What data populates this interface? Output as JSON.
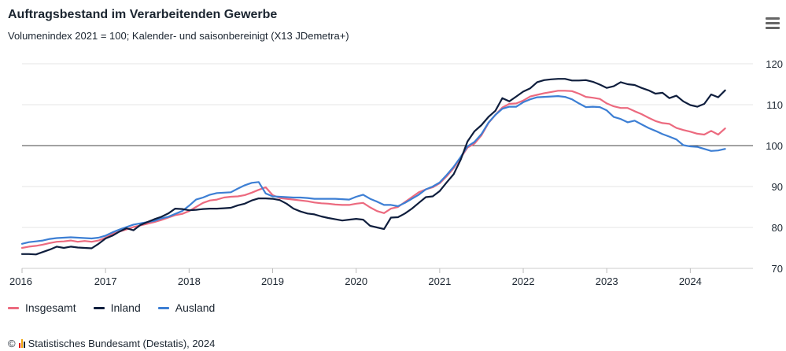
{
  "title": "Auftragsbestand im Verarbeitenden Gewerbe",
  "subtitle": "Volumenindex 2021 = 100; Kalender- und saisonbereinigt (X13 JDemetra+)",
  "menu_icon": "hamburger-menu-icon",
  "source": "Statistisches Bundesamt (Destatis), 2024",
  "source_prefix": "©",
  "colors": {
    "Insgesamt": "#ec6a7f",
    "Inland": "#0f1e3d",
    "Ausland": "#3d7fd4",
    "baseline": "#444444",
    "grid": "#e6e6e6"
  },
  "chart_data": {
    "type": "line",
    "title": "Auftragsbestand im Verarbeitenden Gewerbe",
    "subtitle": "Volumenindex 2021 = 100; Kalender- und saisonbereinigt (X13 JDemetra+)",
    "x_start": "2016-01",
    "x_ticks": [
      "2016",
      "2017",
      "2018",
      "2019",
      "2020",
      "2021",
      "2022",
      "2023",
      "2024"
    ],
    "y_ticks": [
      70,
      80,
      90,
      100,
      110,
      120
    ],
    "ylim": [
      70,
      120
    ],
    "reference_line": 100,
    "legend_position": "bottom-left",
    "series": [
      {
        "name": "Insgesamt",
        "values": [
          75.0,
          75.3,
          75.5,
          75.8,
          76.2,
          76.5,
          76.6,
          76.8,
          76.5,
          76.7,
          76.5,
          76.8,
          77.5,
          78.4,
          79.0,
          79.5,
          80.1,
          80.5,
          80.9,
          81.3,
          81.8,
          82.4,
          83.0,
          83.3,
          84.0,
          85.0,
          86.0,
          86.6,
          86.8,
          87.3,
          87.5,
          87.6,
          87.9,
          88.5,
          89.2,
          89.8,
          87.9,
          87.2,
          87.0,
          86.8,
          86.6,
          86.4,
          86.1,
          85.9,
          85.8,
          85.6,
          85.5,
          85.5,
          85.8,
          86.0,
          84.9,
          84.0,
          83.5,
          84.6,
          85.0,
          86.2,
          87.4,
          88.6,
          89.3,
          89.8,
          90.8,
          92.5,
          94.5,
          97.0,
          99.5,
          100.5,
          102.5,
          105.5,
          107.5,
          109.3,
          110.2,
          110.3,
          111.0,
          112.0,
          112.4,
          112.8,
          113.1,
          113.4,
          113.4,
          113.3,
          112.7,
          111.9,
          111.7,
          111.4,
          110.3,
          109.6,
          109.2,
          109.2,
          108.4,
          107.7,
          106.8,
          106.0,
          105.5,
          105.3,
          104.3,
          103.8,
          103.4,
          102.9,
          102.7,
          103.6,
          102.7,
          104.2
        ]
      },
      {
        "name": "Inland",
        "values": [
          73.5,
          73.5,
          73.4,
          74.0,
          74.6,
          75.3,
          75.0,
          75.3,
          75.1,
          75.0,
          74.9,
          76.0,
          77.3,
          78.0,
          79.0,
          79.8,
          79.3,
          80.6,
          81.3,
          82.0,
          82.6,
          83.4,
          84.6,
          84.5,
          84.2,
          84.3,
          84.5,
          84.6,
          84.6,
          84.7,
          84.8,
          85.4,
          85.8,
          86.6,
          87.1,
          87.1,
          87.0,
          86.7,
          85.8,
          84.6,
          83.9,
          83.4,
          83.2,
          82.7,
          82.3,
          82.0,
          81.7,
          81.9,
          82.1,
          81.9,
          80.4,
          80.0,
          79.6,
          82.4,
          82.5,
          83.4,
          84.6,
          86.0,
          87.4,
          87.6,
          88.9,
          91.0,
          93.0,
          96.5,
          101.0,
          103.5,
          105.0,
          107.0,
          108.5,
          111.6,
          110.8,
          112.0,
          113.2,
          114.0,
          115.5,
          116.0,
          116.2,
          116.3,
          116.3,
          115.9,
          115.9,
          116.0,
          115.6,
          114.9,
          114.1,
          114.5,
          115.5,
          115.0,
          114.8,
          114.1,
          113.5,
          112.7,
          112.9,
          111.6,
          112.2,
          110.8,
          109.9,
          109.5,
          110.2,
          112.5,
          111.8,
          113.5
        ]
      },
      {
        "name": "Ausland",
        "values": [
          76.0,
          76.4,
          76.6,
          76.8,
          77.2,
          77.4,
          77.5,
          77.6,
          77.5,
          77.4,
          77.3,
          77.5,
          78.0,
          78.8,
          79.5,
          80.1,
          80.7,
          81.0,
          81.3,
          81.6,
          82.2,
          82.6,
          83.3,
          84.0,
          85.3,
          86.8,
          87.3,
          88.0,
          88.4,
          88.5,
          88.6,
          89.5,
          90.3,
          90.9,
          91.1,
          88.3,
          87.6,
          87.5,
          87.4,
          87.3,
          87.3,
          87.2,
          87.0,
          87.0,
          87.0,
          87.0,
          86.9,
          86.8,
          87.5,
          88.0,
          87.0,
          86.3,
          85.5,
          85.5,
          85.2,
          86.0,
          87.0,
          88.0,
          89.3,
          90.0,
          91.0,
          92.8,
          94.8,
          97.2,
          99.8,
          100.9,
          102.8,
          105.6,
          107.5,
          109.0,
          109.5,
          109.5,
          110.6,
          111.3,
          111.8,
          111.9,
          112.0,
          112.1,
          111.9,
          111.3,
          110.3,
          109.4,
          109.5,
          109.4,
          108.6,
          107.0,
          106.5,
          105.7,
          106.1,
          105.2,
          104.3,
          103.6,
          102.8,
          102.2,
          101.5,
          100.1,
          99.8,
          99.7,
          99.2,
          98.7,
          98.8,
          99.2
        ]
      }
    ]
  },
  "legend": [
    {
      "label": "Insgesamt",
      "key": "Insgesamt"
    },
    {
      "label": "Inland",
      "key": "Inland"
    },
    {
      "label": "Ausland",
      "key": "Ausland"
    }
  ]
}
